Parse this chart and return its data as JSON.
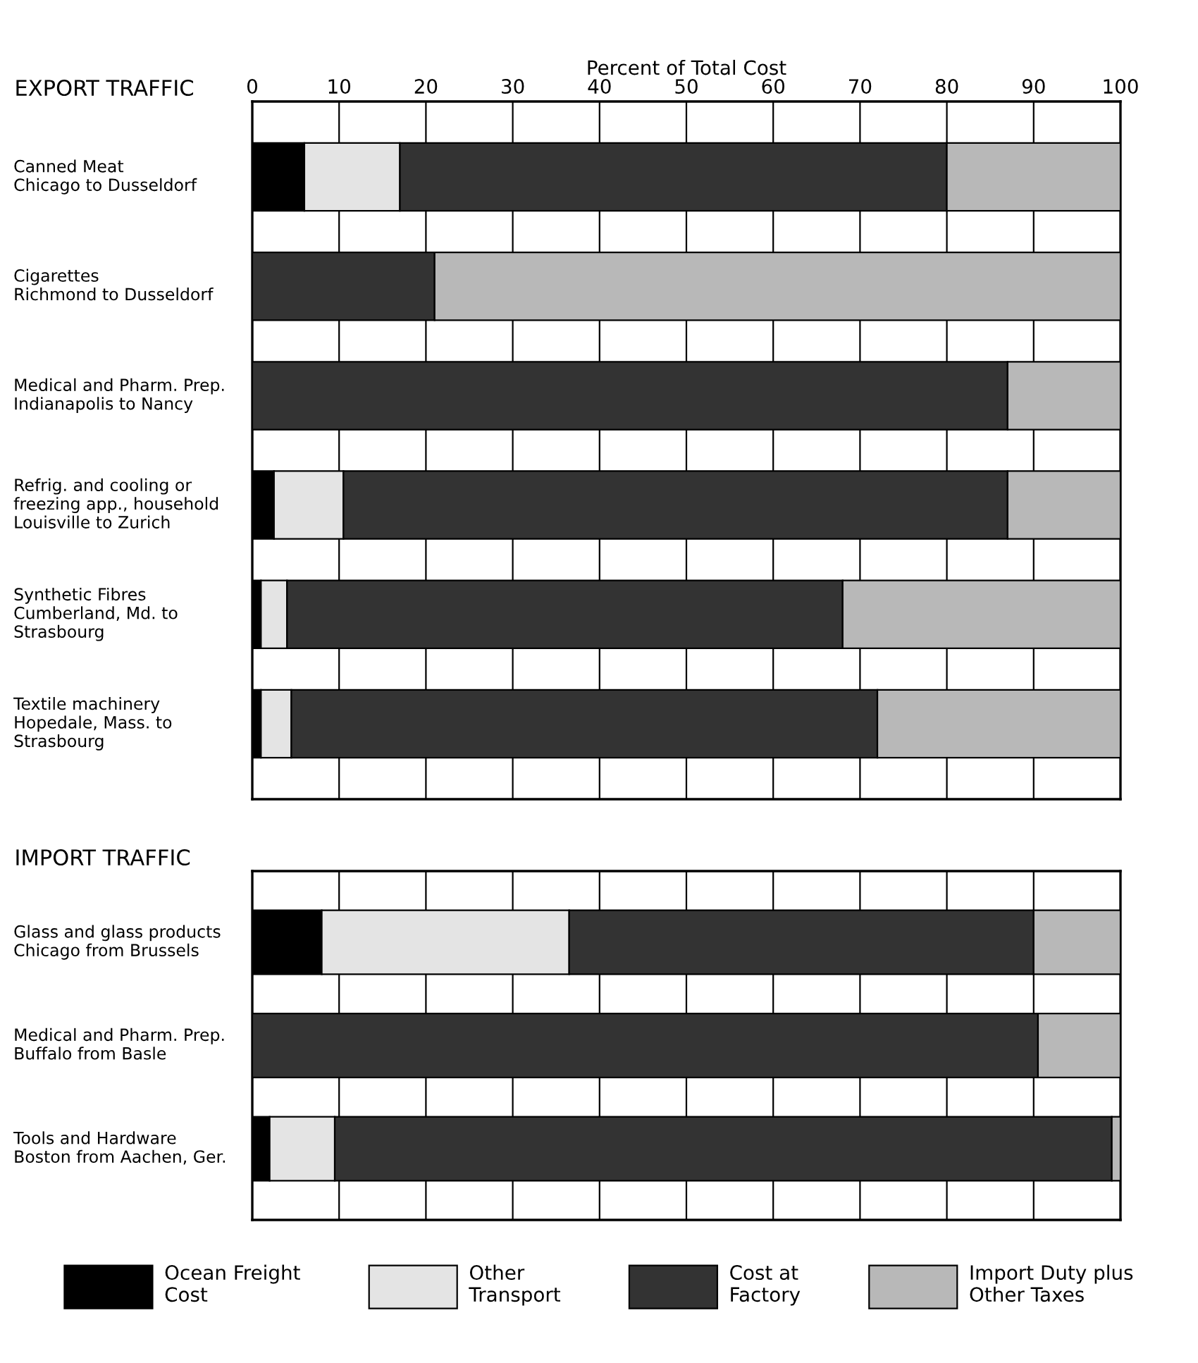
{
  "chart_data": [
    {
      "type": "bar",
      "orientation": "horizontal",
      "stacked": true,
      "title": "EXPORT TRAFFIC",
      "xlabel": "Percent of Total Cost",
      "categories": [
        "Canned Meat\nChicago to Dusseldorf",
        "Cigarettes\nRichmond to Dusseldorf",
        "Medical and Pharm. Prep.\nIndianapolis to Nancy",
        "Refrig. and cooling or\nfreezing app., household\nLouisville to Zurich",
        "Synthetic Fibres\nCumberland, Md. to\nStrasbourg",
        "Textile machinery\nHopedale, Mass. to\nStrasbourg"
      ],
      "series": [
        {
          "color": "#000000",
          "values": [
            6,
            0,
            0,
            2.5,
            1,
            1
          ]
        },
        {
          "color": "#e4e4e4",
          "values": [
            11,
            0,
            0,
            8,
            3,
            3.5
          ]
        },
        {
          "color": "#333333",
          "values": [
            63,
            21,
            87,
            76.5,
            64,
            67.5
          ]
        },
        {
          "color": "#b8b8b8",
          "values": [
            20,
            79,
            13,
            13,
            32,
            28
          ]
        }
      ],
      "xlim": [
        0,
        100
      ],
      "xticks": [
        0,
        10,
        20,
        30,
        40,
        50,
        60,
        70,
        80,
        90,
        100
      ],
      "grid": "x",
      "legend": false
    },
    {
      "type": "bar",
      "orientation": "horizontal",
      "stacked": true,
      "title": "IMPORT TRAFFIC",
      "categories": [
        "Glass and glass products\nChicago from Brussels",
        "Medical and Pharm. Prep.\nBuffalo from Basle",
        "Tools and Hardware\nBoston from Aachen, Ger."
      ],
      "series": [
        {
          "name": "Ocean Freight\nCost",
          "color": "#000000",
          "values": [
            8,
            0,
            2
          ]
        },
        {
          "name": "Other\nTransport",
          "color": "#e4e4e4",
          "values": [
            28.5,
            0,
            7.5
          ]
        },
        {
          "name": "Cost at\nFactory",
          "color": "#333333",
          "values": [
            53.5,
            90.5,
            89.5
          ]
        },
        {
          "name": "Import Duty plus\nOther Taxes",
          "color": "#b8b8b8",
          "values": [
            10,
            9.5,
            1
          ]
        }
      ],
      "xlim": [
        0,
        100
      ],
      "xticks": [
        0,
        10,
        20,
        30,
        40,
        50,
        60,
        70,
        80,
        90,
        100
      ],
      "tick_labels": "y",
      "grid": "x",
      "legend": "bottom"
    }
  ]
}
